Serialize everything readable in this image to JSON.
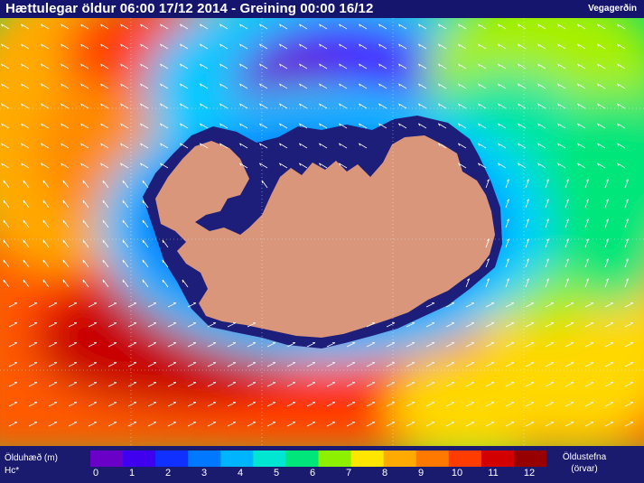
{
  "header": {
    "title": "Hættulegar öldur 06:00 17/12 2014 - Greining 00:00 16/12",
    "brand": "Vegagerðin"
  },
  "map": {
    "land_color": "#d9967a",
    "coast_color": "#1d1d7a",
    "arrow_color": "#ffffff"
  },
  "legend": {
    "label_height": "Ölduhæð (m)",
    "label_hc": "Hc*",
    "label_direction": "Öldustefna",
    "label_arrows": "(örvar)",
    "ticks": [
      "0",
      "1",
      "2",
      "3",
      "4",
      "5",
      "6",
      "7",
      "8",
      "9",
      "10",
      "11",
      "12"
    ],
    "colors": [
      "#6a00c8",
      "#4000f0",
      "#1030ff",
      "#0078ff",
      "#00b4ff",
      "#00e6d2",
      "#00e67a",
      "#8cf000",
      "#ffe600",
      "#ffaa00",
      "#ff7800",
      "#ff3c00",
      "#d20000",
      "#960000"
    ]
  }
}
